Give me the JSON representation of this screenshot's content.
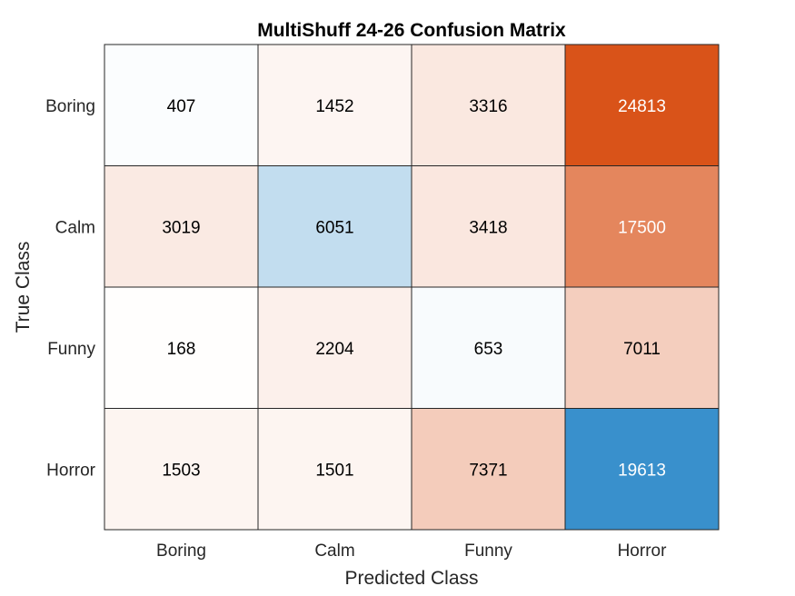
{
  "chart_data": {
    "type": "heatmap",
    "title": "MultiShuff 24-26 Confusion Matrix",
    "xlabel": "Predicted Class",
    "ylabel": "True Class",
    "x_categories": [
      "Boring",
      "Calm",
      "Funny",
      "Horror"
    ],
    "y_categories": [
      "Boring",
      "Calm",
      "Funny",
      "Horror"
    ],
    "values": [
      [
        407,
        1452,
        3316,
        24813
      ],
      [
        3019,
        6051,
        3418,
        17500
      ],
      [
        168,
        2204,
        653,
        7011
      ],
      [
        1503,
        1501,
        7371,
        19613
      ]
    ],
    "grid": true,
    "colors": {
      "diagonal_high": "#3990cc",
      "offdiagonal_high": "#d95319",
      "low": "#ffffff",
      "text_dark": "#000000",
      "text_light": "#ffffff"
    }
  }
}
